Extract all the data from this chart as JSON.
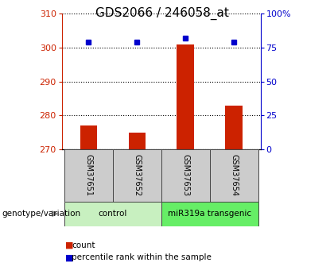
{
  "title": "GDS2066 / 246058_at",
  "samples": [
    "GSM37651",
    "GSM37652",
    "GSM37653",
    "GSM37654"
  ],
  "groups": [
    "control",
    "control",
    "miR319a transgenic",
    "miR319a transgenic"
  ],
  "group_labels": [
    "control",
    "miR319a transgenic"
  ],
  "group_colors_light": [
    "#c8f0c0",
    "#66ee66"
  ],
  "group_colors_dark": [
    "#88dd88",
    "#33cc33"
  ],
  "counts": [
    277,
    275,
    301,
    283
  ],
  "pct_ranks": [
    79.0,
    79.0,
    82.0,
    79.0
  ],
  "ylim_left": [
    270,
    310
  ],
  "ylim_right": [
    0,
    100
  ],
  "yticks_left": [
    270,
    280,
    290,
    300,
    310
  ],
  "yticks_right": [
    0,
    25,
    50,
    75,
    100
  ],
  "bar_color": "#cc2200",
  "dot_color": "#0000cc",
  "bar_width": 0.35,
  "xlabel_label": "genotype/variation",
  "legend_count_label": "count",
  "legend_pct_label": "percentile rank within the sample",
  "sample_box_color": "#cccccc",
  "tick_fontsize": 8,
  "left_axis_color": "#cc2200",
  "right_axis_color": "#0000cc",
  "title_fontsize": 11
}
